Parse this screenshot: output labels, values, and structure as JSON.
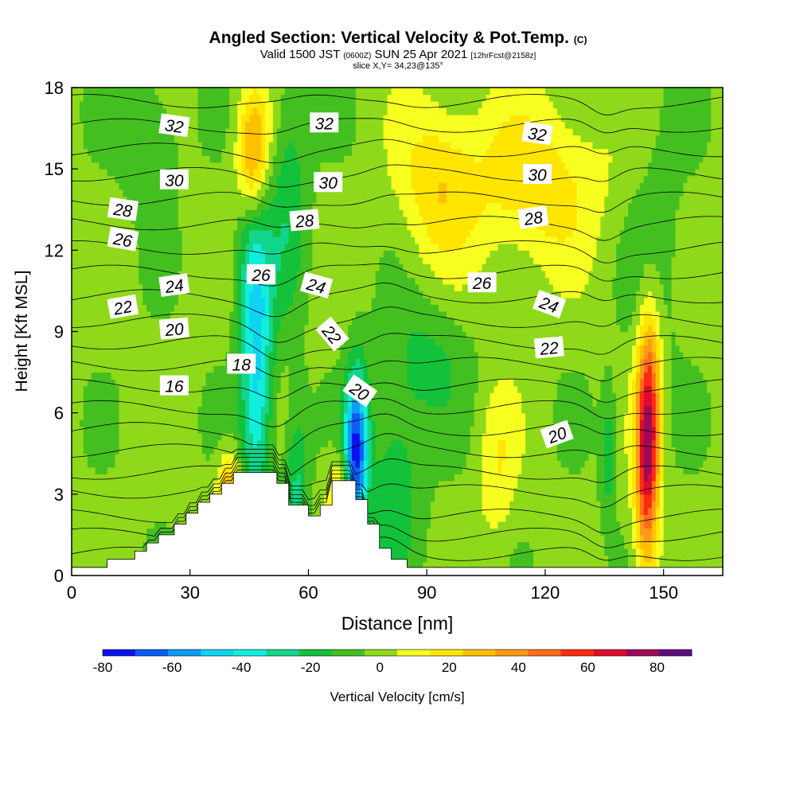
{
  "header": {
    "title": "Angled Section: Vertical Velocity & Pot.Temp.",
    "title_suffix": "(C)",
    "valid_prefix": "Valid 1500 JST",
    "valid_utc": "(0600Z)",
    "valid_date": "SUN 25 Apr 2021",
    "forecast": "[12hrFcst@2158z]",
    "slice": "slice X,Y= 34,23@135°"
  },
  "chart_data": {
    "type": "heatmap",
    "xlabel": "Distance [nm]",
    "ylabel": "Height [Kft MSL]",
    "xlim": [
      0,
      165
    ],
    "ylim": [
      0,
      18
    ],
    "x_ticks": [
      "0",
      "30",
      "60",
      "90",
      "120",
      "150"
    ],
    "y_ticks": [
      "0",
      "3",
      "6",
      "9",
      "12",
      "15",
      "18"
    ],
    "colorbar": {
      "label": "Vertical Velocity [cm/s]",
      "tick_labels": [
        "-80",
        "-60",
        "-40",
        "-20",
        "0",
        "20",
        "40",
        "60",
        "80"
      ],
      "levels": [
        -80,
        -70,
        -60,
        -50,
        -40,
        -30,
        -20,
        -10,
        0,
        10,
        20,
        30,
        40,
        50,
        60,
        70,
        80,
        90
      ],
      "colors": [
        "#0b12ee",
        "#0c5cf6",
        "#0f9bf5",
        "#0fd3f0",
        "#10eedc",
        "#13d58c",
        "#13c23a",
        "#44bf21",
        "#8ed91a",
        "#f7ff21",
        "#ffe500",
        "#ffc000",
        "#ff9a18",
        "#ff6e18",
        "#ff2a14",
        "#e00a2c",
        "#a0085a",
        "#5e0b82"
      ]
    },
    "velocity_features": [
      {
        "x": 47,
        "y_center": 7.5,
        "x_width": 4,
        "y_half": 5.5,
        "value": -45
      },
      {
        "x": 72,
        "y_center": 4.5,
        "x_width": 3,
        "y_half": 3.0,
        "value": -75
      },
      {
        "x": 57,
        "y_center": 3.5,
        "x_width": 3,
        "y_half": 3.0,
        "value": -25
      },
      {
        "x": 82,
        "y_center": 3.5,
        "x_width": 7,
        "y_half": 3.5,
        "value": -20
      },
      {
        "x": 90,
        "y_center": 8.0,
        "x_width": 10,
        "y_half": 2.5,
        "value": -15
      },
      {
        "x": 45,
        "y_center": 12.0,
        "x_width": 4,
        "y_half": 3.0,
        "value": -20
      },
      {
        "x": 55,
        "y_center": 14.0,
        "x_width": 5,
        "y_half": 4.5,
        "value": -20
      },
      {
        "x": 20,
        "y_center": 16.0,
        "x_width": 7,
        "y_half": 2.5,
        "value": -15
      },
      {
        "x": 148,
        "y_center": 12.0,
        "x_width": 7,
        "y_half": 5.0,
        "value": -10
      },
      {
        "x": 136,
        "y_center": 4.5,
        "x_width": 2,
        "y_half": 2.5,
        "value": -20
      },
      {
        "x": 146,
        "y_center": 5.0,
        "x_width": 3,
        "y_half": 4.5,
        "value": 85
      },
      {
        "x": 46,
        "y_center": 15.5,
        "x_width": 4,
        "y_half": 2.5,
        "value": 45
      },
      {
        "x": 40,
        "y_center": 3.0,
        "x_width": 3,
        "y_half": 1.5,
        "value": 40
      },
      {
        "x": 68,
        "y_center": 3.0,
        "x_width": 3,
        "y_half": 1.5,
        "value": 30
      },
      {
        "x": 93,
        "y_center": 14.5,
        "x_width": 10,
        "y_half": 3.0,
        "value": 25
      },
      {
        "x": 118,
        "y_center": 14.5,
        "x_width": 16,
        "y_half": 3.0,
        "value": 25
      },
      {
        "x": 108,
        "y_center": 4.0,
        "x_width": 5,
        "y_half": 3.0,
        "value": 15
      }
    ],
    "terrain": [
      [
        0,
        0.3
      ],
      [
        9,
        0.3
      ],
      [
        9,
        0.6
      ],
      [
        16,
        0.6
      ],
      [
        16,
        0.9
      ],
      [
        19,
        0.9
      ],
      [
        19,
        1.2
      ],
      [
        22,
        1.2
      ],
      [
        22,
        1.5
      ],
      [
        26,
        1.5
      ],
      [
        26,
        1.9
      ],
      [
        29,
        1.9
      ],
      [
        29,
        2.3
      ],
      [
        32,
        2.3
      ],
      [
        32,
        2.7
      ],
      [
        35,
        2.7
      ],
      [
        35,
        3.0
      ],
      [
        38,
        3.0
      ],
      [
        38,
        3.4
      ],
      [
        41,
        3.4
      ],
      [
        41,
        3.8
      ],
      [
        52,
        3.8
      ],
      [
        52,
        3.4
      ],
      [
        55,
        3.4
      ],
      [
        55,
        2.6
      ],
      [
        60,
        2.6
      ],
      [
        60,
        2.2
      ],
      [
        63,
        2.2
      ],
      [
        63,
        2.6
      ],
      [
        66,
        2.6
      ],
      [
        66,
        3.5
      ],
      [
        72,
        3.5
      ],
      [
        72,
        2.8
      ],
      [
        75,
        2.8
      ],
      [
        75,
        1.9
      ],
      [
        78,
        1.9
      ],
      [
        78,
        1.0
      ],
      [
        81,
        1.0
      ],
      [
        81,
        0.6
      ],
      [
        85,
        0.6
      ],
      [
        85,
        0.3
      ],
      [
        165,
        0.3
      ]
    ],
    "theta_contours": {
      "levels": [
        14,
        15,
        16,
        17,
        18,
        19,
        20,
        21,
        22,
        23,
        24,
        25,
        26,
        27,
        28,
        29,
        30,
        31,
        32,
        33,
        34
      ],
      "base_heights": [
        0.8,
        1.5,
        2.2,
        3.1,
        3.8,
        4.6,
        5.4,
        6.2,
        7.0,
        7.8,
        8.6,
        9.4,
        10.3,
        11.2,
        12.1,
        13.0,
        13.9,
        14.8,
        15.7,
        16.6,
        17.5
      ]
    },
    "contour_labels": [
      {
        "text": "32",
        "x": 26,
        "y": 16.6,
        "angle": 8
      },
      {
        "text": "32",
        "x": 64,
        "y": 16.7,
        "angle": 0
      },
      {
        "text": "32",
        "x": 118,
        "y": 16.3,
        "angle": 8
      },
      {
        "text": "30",
        "x": 26,
        "y": 14.6,
        "angle": 0
      },
      {
        "text": "30",
        "x": 65,
        "y": 14.5,
        "angle": 0
      },
      {
        "text": "30",
        "x": 118,
        "y": 14.8,
        "angle": 0
      },
      {
        "text": "28",
        "x": 13,
        "y": 13.5,
        "angle": 8
      },
      {
        "text": "28",
        "x": 59,
        "y": 13.1,
        "angle": -5
      },
      {
        "text": "28",
        "x": 117,
        "y": 13.2,
        "angle": -8
      },
      {
        "text": "26",
        "x": 13,
        "y": 12.4,
        "angle": 10
      },
      {
        "text": "26",
        "x": 48,
        "y": 11.1,
        "angle": 0
      },
      {
        "text": "26",
        "x": 104,
        "y": 10.8,
        "angle": 0
      },
      {
        "text": "24",
        "x": 26,
        "y": 10.7,
        "angle": -8
      },
      {
        "text": "24",
        "x": 62,
        "y": 10.7,
        "angle": 15
      },
      {
        "text": "24",
        "x": 121,
        "y": 10.0,
        "angle": 20
      },
      {
        "text": "22",
        "x": 13,
        "y": 9.9,
        "angle": -10
      },
      {
        "text": "22",
        "x": 66,
        "y": 8.9,
        "angle": 50
      },
      {
        "text": "22",
        "x": 121,
        "y": 8.4,
        "angle": -5
      },
      {
        "text": "20",
        "x": 26,
        "y": 9.1,
        "angle": -5
      },
      {
        "text": "20",
        "x": 73,
        "y": 6.8,
        "angle": 35
      },
      {
        "text": "20",
        "x": 123,
        "y": 5.2,
        "angle": -20
      },
      {
        "text": "18",
        "x": 43,
        "y": 7.8,
        "angle": 0
      },
      {
        "text": "16",
        "x": 26,
        "y": 7.0,
        "angle": 0
      }
    ]
  }
}
